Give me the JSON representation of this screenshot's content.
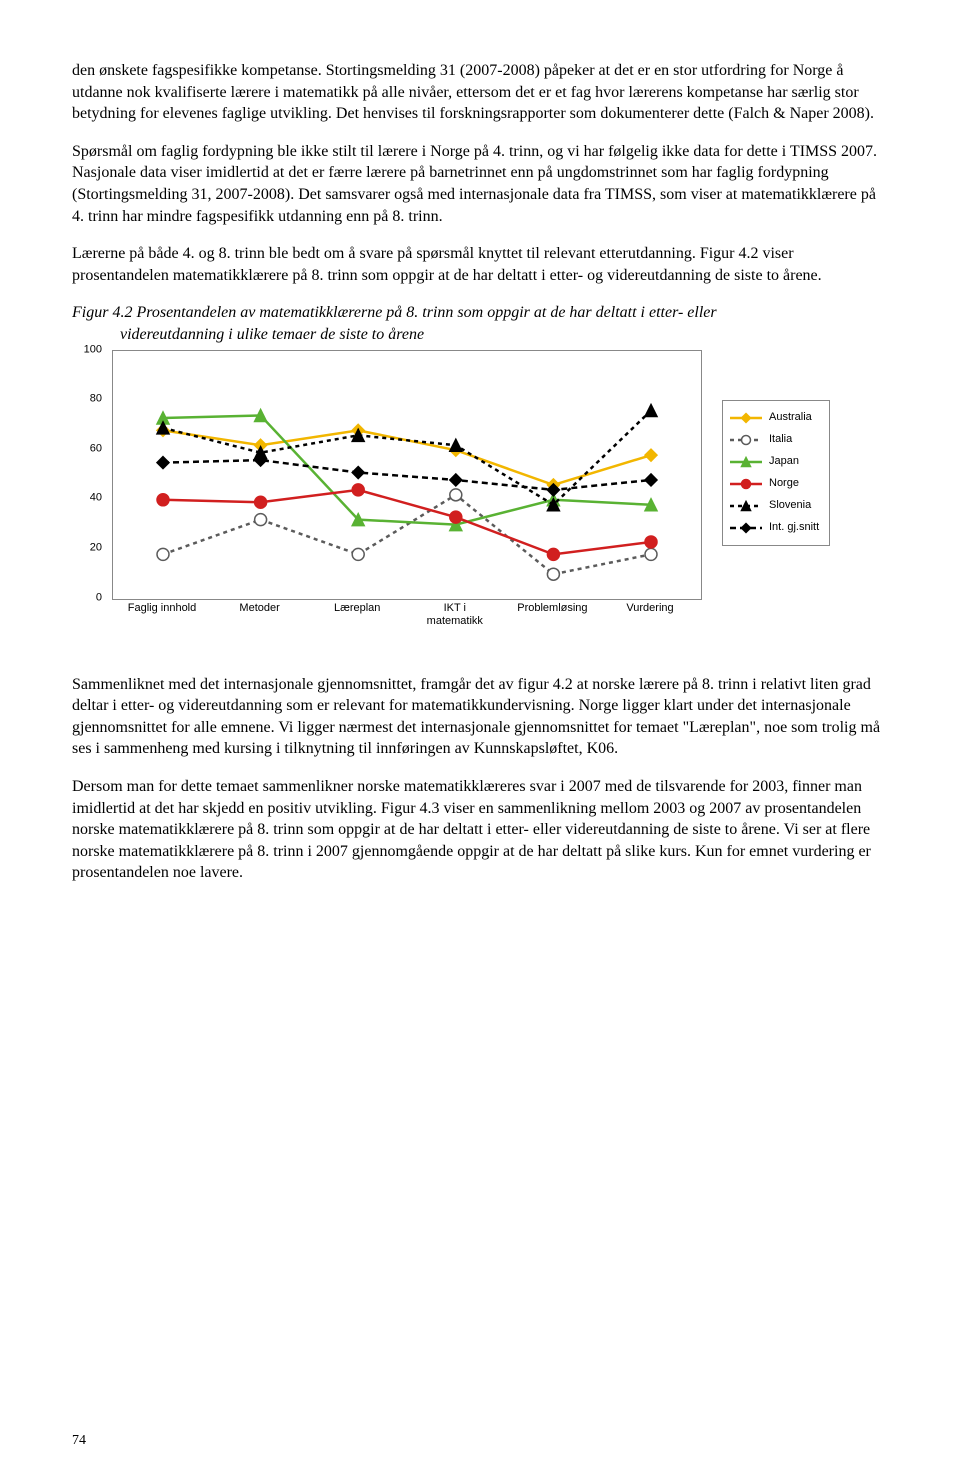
{
  "para1": "den ønskete fagspesifikke kompetanse. Stortingsmelding 31 (2007-2008) påpeker at det er en stor utfordring for Norge å utdanne nok kvalifiserte lærere i matematikk på alle nivåer, ettersom det er et fag hvor lærerens kompetanse har særlig stor betydning for elevenes faglige utvikling. Det henvises til forskningsrapporter som dokumenterer dette (Falch & Naper 2008).",
  "para2": "Spørsmål om faglig fordypning ble ikke stilt til lærere i Norge på 4. trinn, og vi har følgelig ikke data for dette i TIMSS 2007. Nasjonale data viser imidlertid at det er færre lærere på barnetrinnet enn på ungdomstrinnet som har faglig fordypning (Stortingsmelding 31, 2007-2008). Det samsvarer også med internasjonale data fra TIMSS, som viser at matematikklærere på 4. trinn har mindre fagspesifikk utdanning enn på 8. trinn.",
  "para3": "Lærerne på både 4. og 8. trinn ble bedt om å svare på spørsmål knyttet til relevant etterutdanning. Figur 4.2 viser prosentandelen matematikklærere på 8. trinn som oppgir at de har deltatt i etter- og videreutdanning de siste to årene.",
  "figcaption_a": "Figur 4.2 Prosentandelen av matematikklærerne på 8. trinn som oppgir at de har deltatt i etter- eller",
  "figcaption_b": "videreutdanning i ulike temaer de siste to årene",
  "para4": "Sammenliknet med det internasjonale gjennomsnittet, framgår det av figur 4.2 at norske lærere på 8. trinn i relativt liten grad deltar i etter- og videreutdanning som er relevant for matematikkundervisning. Norge ligger klart under det internasjonale gjennomsnittet for alle emnene. Vi ligger nærmest det internasjonale gjennomsnittet for temaet \"Læreplan\", noe som trolig må ses i sammenheng med kursing i tilknytning til innføringen av Kunnskapsløftet, K06.",
  "para5": "Dersom man for dette temaet sammenlikner norske matematikklæreres svar i 2007 med de tilsvarende for 2003, finner man imidlertid at det har skjedd en positiv utvikling. Figur 4.3 viser en sammenlikning mellom 2003 og 2007 av prosentandelen norske matematikklærere på 8. trinn som oppgir at de har deltatt i etter- eller videreutdanning de siste to årene. Vi ser at flere norske matematikklærere på 8. trinn i 2007 gjennomgående oppgir at de har deltatt på slike kurs. Kun for emnet vurdering er prosentandelen noe lavere.",
  "page_number": "74",
  "chart": {
    "type": "line",
    "categories": [
      "Faglig innhold",
      "Metoder",
      "Læreplan",
      "IKT i\nmatematikk",
      "Problemløsing",
      "Vurdering"
    ],
    "ylim": [
      0,
      100
    ],
    "yticks": [
      0,
      20,
      40,
      60,
      80,
      100
    ],
    "background_color": "#ffffff",
    "border_color": "#888888",
    "label_font_family": "Arial",
    "label_fontsize": 11,
    "series": [
      {
        "name": "Australia",
        "color": "#f2b600",
        "dash": "none",
        "marker": "diamond",
        "marker_fill": "#f2b600",
        "values": [
          68,
          62,
          68,
          60,
          46,
          58
        ]
      },
      {
        "name": "Italia",
        "color": "#5b5b5b",
        "dash": "4,4",
        "marker": "circle-open",
        "marker_fill": "#ffffff",
        "values": [
          18,
          32,
          18,
          42,
          10,
          18
        ]
      },
      {
        "name": "Japan",
        "color": "#59b233",
        "dash": "none",
        "marker": "triangle",
        "marker_fill": "#59b233",
        "values": [
          73,
          74,
          32,
          30,
          40,
          38
        ]
      },
      {
        "name": "Norge",
        "color": "#d11f1f",
        "dash": "none",
        "marker": "circle",
        "marker_fill": "#d11f1f",
        "values": [
          40,
          39,
          44,
          33,
          18,
          23
        ]
      },
      {
        "name": "Slovenia",
        "color": "#000000",
        "dash": "4,4",
        "marker": "triangle",
        "marker_fill": "#000000",
        "values": [
          69,
          59,
          66,
          62,
          38,
          76
        ]
      },
      {
        "name": "Int. gj.snitt",
        "color": "#000000",
        "dash": "6,4",
        "marker": "diamond",
        "marker_fill": "#000000",
        "values": [
          55,
          56,
          51,
          48,
          44,
          48
        ]
      }
    ],
    "line_width": 2.5,
    "marker_size": 6
  }
}
